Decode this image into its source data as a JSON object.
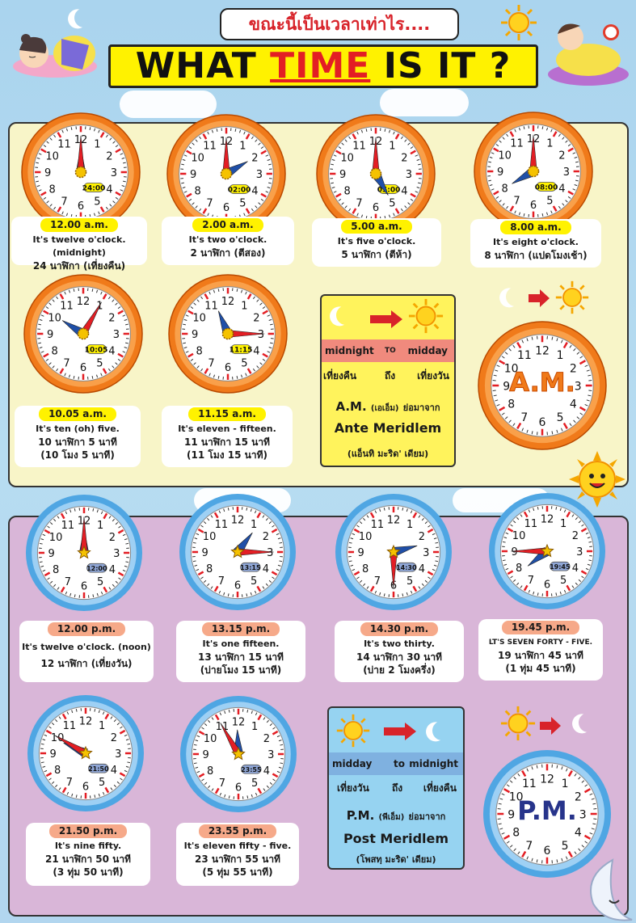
{
  "header": {
    "thai_title": "ขณะนี้เป็นเวลาเท่าไร....",
    "title_pre": "WHAT ",
    "title_hl": "TIME",
    "title_post": " IS IT ?"
  },
  "colors": {
    "am_panel": "#f8f5c8",
    "pm_panel": "#d9b6d8",
    "orange_rim": "#f07a1a",
    "blue_rim": "#4fa6e3",
    "title_red": "#e31e24"
  },
  "am_clocks": [
    {
      "digital": "24:00",
      "hour": 12,
      "minute": 0,
      "time": "12.00 a.m.",
      "en": "It's twelve o'clock. (midnight)",
      "th1": "24 นาฬิกา (เที่ยงคืน)",
      "th2": ""
    },
    {
      "digital": "02:00",
      "hour": 2,
      "minute": 0,
      "time": "2.00 a.m.",
      "en": "It's two o'clock.",
      "th1": "2 นาฬิกา (ตีสอง)",
      "th2": ""
    },
    {
      "digital": "05:00",
      "hour": 5,
      "minute": 0,
      "time": "5.00 a.m.",
      "en": "It's five o'clock.",
      "th1": "5 นาฬิกา (ตีห้า)",
      "th2": ""
    },
    {
      "digital": "08:00",
      "hour": 8,
      "minute": 0,
      "time": "8.00 a.m.",
      "en": "It's eight o'clock.",
      "th1": "8 นาฬิกา (แปดโมงเช้า)",
      "th2": ""
    },
    {
      "digital": "10:05",
      "hour": 10,
      "minute": 5,
      "time": "10.05 a.m.",
      "en": "It's ten (oh) five.",
      "th1": "10 นาฬิกา 5 นาที",
      "th2": "(10 โมง 5 นาที)"
    },
    {
      "digital": "11:15",
      "hour": 11,
      "minute": 15,
      "time": "11.15 a.m.",
      "en": "It's eleven - fifteen.",
      "th1": "11 นาฬิกา 15 นาที",
      "th2": "(11 โมง 15 นาที)"
    }
  ],
  "pm_clocks": [
    {
      "digital": "12:00",
      "hour": 12,
      "minute": 0,
      "time": "12.00 p.m.",
      "en": "It's twelve o'clock. (noon)",
      "th1": "12 นาฬิกา (เที่ยงวัน)",
      "th2": ""
    },
    {
      "digital": "13:15",
      "hour": 1,
      "minute": 15,
      "time": "13.15 p.m.",
      "en": "It's one fifteen.",
      "th1": "13 นาฬิกา 15 นาที",
      "th2": "(บ่ายโมง 15 นาที)"
    },
    {
      "digital": "14:30",
      "hour": 2,
      "minute": 30,
      "time": "14.30 p.m.",
      "en": "It's two thirty.",
      "th1": "14 นาฬิกา 30 นาที",
      "th2": "(บ่าย 2 โมงครึ่ง)"
    },
    {
      "digital": "19:45",
      "hour": 7,
      "minute": 45,
      "time": "19.45 p.m.",
      "en": "LT'S SEVEN FORTY - FIVE.",
      "th1": "19 นาฬิกา 45 นาที",
      "th2": "(1 ทุ่ม 45 นาที)"
    },
    {
      "digital": "21:50",
      "hour": 9,
      "minute": 50,
      "time": "21.50 p.m.",
      "en": "It's nine fifty.",
      "th1": "21 นาฬิกา 50 นาที",
      "th2": "(3 ทุ่ม 50 นาที)"
    },
    {
      "digital": "23:55",
      "hour": 11,
      "minute": 55,
      "time": "23.55 p.m.",
      "en": "It's eleven fifty - five.",
      "th1": "23 นาฬิกา 55 นาที",
      "th2": "(5 ทุ่ม 55 นาที)"
    }
  ],
  "am_info": {
    "from": "midnight",
    "to_word": "TO",
    "to": "midday",
    "from_th": "เที่ยงคืน",
    "to_th_word": "ถึง",
    "to_th": "เที่ยงวัน",
    "abbr": "A.M.",
    "abbr_th": "(เอเอ็ม)",
    "short_for": "ย่อมาจาก",
    "full": "Ante Meridlem",
    "pron": "(แอ็นทิ มะริด' เดียม)"
  },
  "pm_info": {
    "from": "midday",
    "to_word": "to",
    "to": "midnight",
    "from_th": "เที่ยงวัน",
    "to_th_word": "ถึง",
    "to_th": "เที่ยงคืน",
    "abbr": "P.M.",
    "abbr_th": "(พีเอ็ม)",
    "short_for": "ย่อมาจาก",
    "full": "Post Meridlem",
    "pron": "(โพสทฺ มะริด' เดียม)"
  },
  "am_big_clock_label": "A.M.",
  "pm_big_clock_label": "P.M.",
  "clock_numbers": [
    "12",
    "1",
    "2",
    "3",
    "4",
    "5",
    "6",
    "7",
    "8",
    "9",
    "10",
    "11"
  ]
}
